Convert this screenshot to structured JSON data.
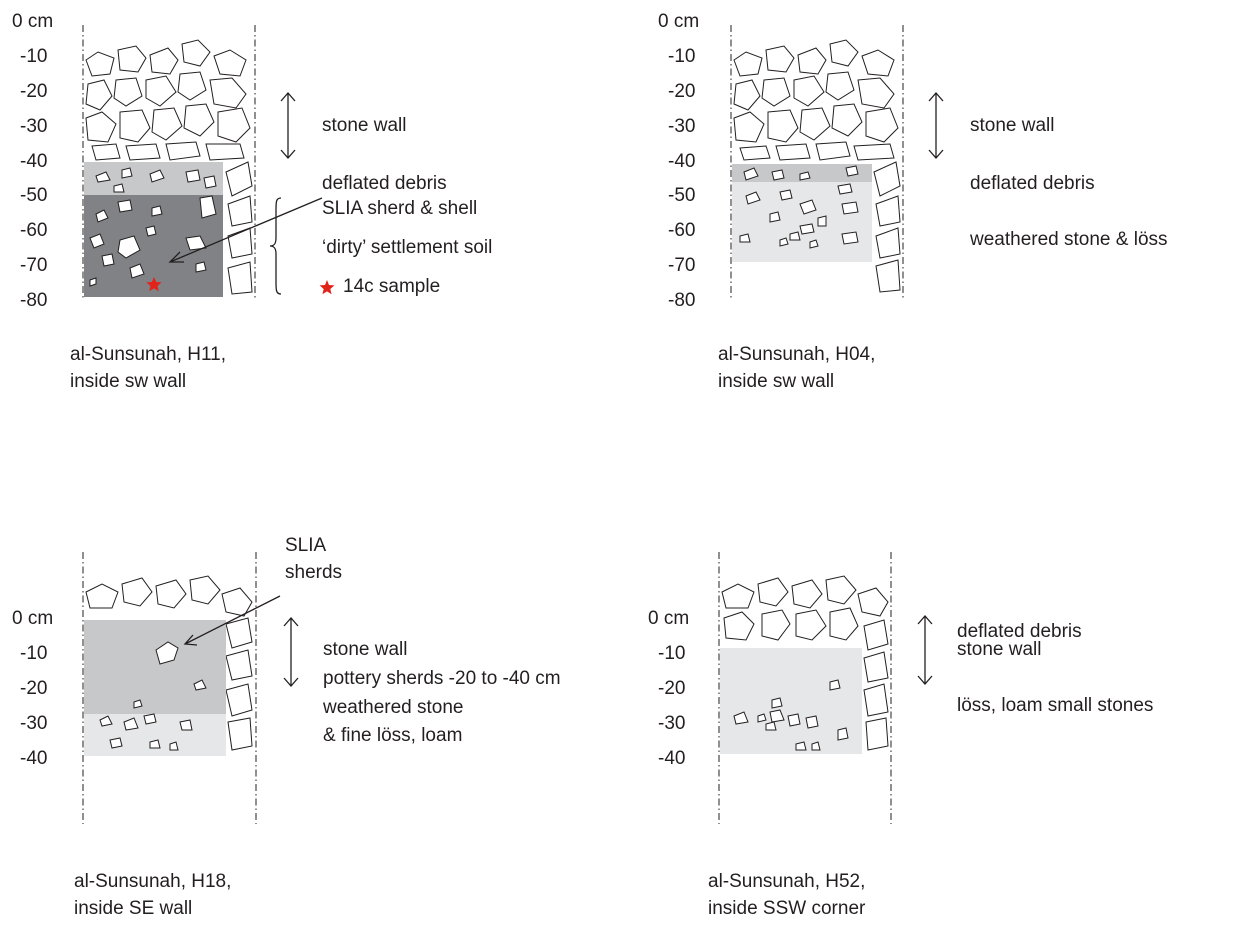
{
  "colors": {
    "dark_layer": "#808285",
    "mid_layer": "#c7c8ca",
    "light_layer": "#e6e7e8",
    "sample_star": "#e2231a",
    "ink": "#231f20"
  },
  "icons": [
    "double-arrow-icon",
    "pointer-arrow-icon",
    "star-icon",
    "brace-icon"
  ],
  "profiles": [
    {
      "depth_ticks": [
        "0 cm",
        "-10",
        "-20",
        "-30",
        "-40",
        "-50",
        "-60",
        "-70",
        "-80"
      ],
      "labels": [
        "stone wall",
        "deflated debris",
        "SLIA  sherd & shell",
        "‘dirty’ settlement soil",
        "14c sample"
      ],
      "caption": [
        "al-Sunsunah, H11,",
        "inside sw wall"
      ]
    },
    {
      "depth_ticks": [
        "0 cm",
        "-10",
        "-20",
        "-30",
        "-40",
        "-50",
        "-60",
        "-70",
        "-80"
      ],
      "labels": [
        "stone wall",
        "deflated debris",
        "weathered stone & löss"
      ],
      "caption": [
        "al-Sunsunah, H04,",
        "inside sw wall"
      ]
    },
    {
      "depth_ticks": [
        "0 cm",
        "-10",
        "-20",
        "-30",
        "-40"
      ],
      "labels": [
        "SLIA",
        "sherds",
        "stone wall",
        "pottery sherds -20 to -40 cm",
        "weathered stone",
        "& fine löss, loam"
      ],
      "caption": [
        "al-Sunsunah, H18,",
        "inside SE wall"
      ]
    },
    {
      "depth_ticks": [
        "0 cm",
        "-10",
        "-20",
        "-30",
        "-40"
      ],
      "labels": [
        "deflated debris",
        "stone wall",
        "löss, loam small stones"
      ],
      "caption": [
        "al-Sunsunah, H52,",
        "inside SSW corner"
      ]
    }
  ]
}
